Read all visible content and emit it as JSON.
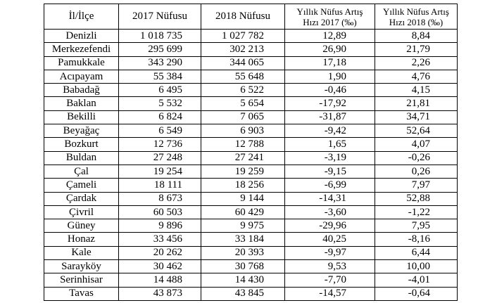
{
  "table": {
    "header": [
      "İl/İlçe",
      "2017 Nüfusu",
      "2018 Nüfusu",
      "Yıllık Nüfus Artış\nHızı 2017 (‰)",
      "Yıllık Nüfus Artış\nHızı 2018 (‰)"
    ],
    "rows": [
      [
        "Denizli",
        "1 018 735",
        "1 027 782",
        "12,89",
        "8,84"
      ],
      [
        "Merkezefendi",
        "295 699",
        "302 213",
        "26,90",
        "21,79"
      ],
      [
        "Pamukkale",
        "343 290",
        "344 065",
        "17,18",
        "2,26"
      ],
      [
        "Acıpayam",
        "55 384",
        "55 648",
        "1,90",
        "4,76"
      ],
      [
        "Babadağ",
        "6 495",
        "6 522",
        "-0,46",
        "4,15"
      ],
      [
        "Baklan",
        "5 532",
        "5 654",
        "-17,92",
        "21,81"
      ],
      [
        "Bekilli",
        "6 824",
        "7 065",
        "-31,87",
        "34,71"
      ],
      [
        "Beyağaç",
        "6 549",
        "6 903",
        "-9,42",
        "52,64"
      ],
      [
        "Bozkurt",
        "12 736",
        "12 788",
        "1,65",
        "4,07"
      ],
      [
        "Buldan",
        "27 248",
        "27 241",
        "-3,19",
        "-0,26"
      ],
      [
        "Çal",
        "19 254",
        "19 259",
        "-9,15",
        "0,26"
      ],
      [
        "Çameli",
        "18 111",
        "18 256",
        "-6,99",
        "7,97"
      ],
      [
        "Çardak",
        "8 673",
        "9 144",
        "-14,31",
        "52,88"
      ],
      [
        "Çivril",
        "60 503",
        "60 429",
        "-3,60",
        "-1,22"
      ],
      [
        "Güney",
        "9 896",
        "9 975",
        "-29,96",
        "7,95"
      ],
      [
        "Honaz",
        "33 456",
        "33 184",
        "40,25",
        "-8,16"
      ],
      [
        "Kale",
        "20 262",
        "20 393",
        "-9,97",
        "6,44"
      ],
      [
        "Sarayköy",
        "30 462",
        "30 768",
        "9,53",
        "10,00"
      ],
      [
        "Serinhisar",
        "14 488",
        "14 430",
        "-7,70",
        "-4,01"
      ],
      [
        "Tavas",
        "43 873",
        "43 845",
        "-14,57",
        "-0,64"
      ]
    ]
  }
}
